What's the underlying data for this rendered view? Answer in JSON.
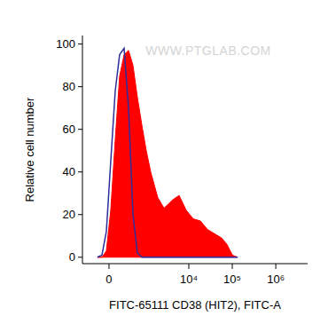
{
  "chart_data": {
    "type": "histogram",
    "xlabel": "FITC-65111 CD38 (HIT2), FITC-A",
    "ylabel": "Relative cell number",
    "annotations": [
      "WWW.PTGLAB.COM"
    ],
    "x": [
      -190,
      -112,
      -41,
      27,
      98,
      173,
      259,
      359,
      479,
      624,
      806,
      1031,
      1314,
      1921,
      2680,
      4300,
      5980,
      8720,
      12700,
      18500,
      26900,
      39200,
      57100,
      75700,
      100400,
      133000
    ],
    "series": [
      {
        "color": "#ff0000",
        "type": "area",
        "values": [
          0,
          0,
          3,
          22,
          55,
          85,
          95,
          97,
          90,
          75,
          62,
          50,
          40,
          28,
          23,
          27,
          29,
          22,
          18,
          17,
          13,
          11,
          9,
          6,
          1,
          0
        ]
      },
      {
        "color": "#2e2e9a",
        "type": "line",
        "values": [
          0,
          1,
          12,
          45,
          78,
          95,
          98,
          70,
          20,
          2,
          0,
          0,
          0,
          0,
          0,
          0,
          0,
          0,
          0,
          0,
          0,
          0,
          0,
          0,
          0,
          0
        ]
      }
    ],
    "xlim": [
      -560,
      5400000
    ],
    "ylim": [
      -3,
      104
    ],
    "xticks": [
      0,
      {
        "value": 10000,
        "label": "10⁴"
      },
      {
        "value": 100000,
        "label": "10⁵"
      },
      {
        "value": 1000000,
        "label": "10⁶"
      }
    ],
    "yticks": [
      0,
      20,
      40,
      60,
      80,
      100
    ],
    "grid": false
  }
}
